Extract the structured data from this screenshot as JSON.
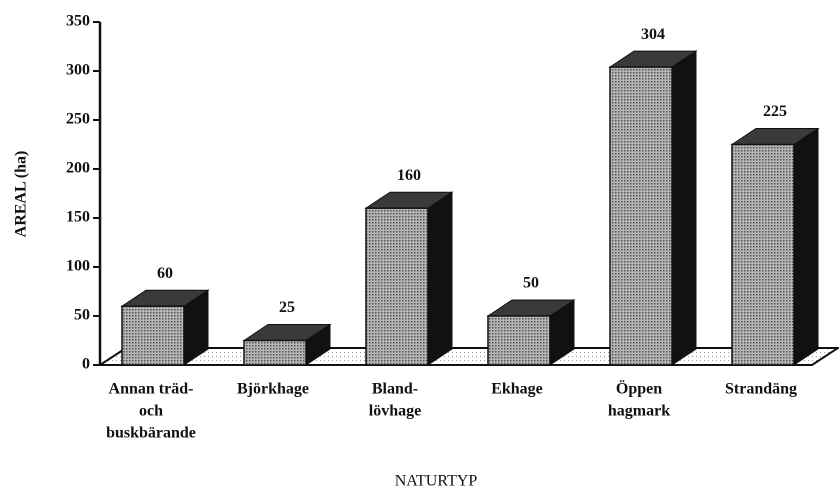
{
  "chart_data": {
    "type": "bar3d",
    "x_label": "NATURTYP",
    "y_label": "AREAL (ha)",
    "categories": [
      [
        "Annan träd-",
        "och",
        "buskbärande"
      ],
      [
        "Björkhage"
      ],
      [
        "Bland-",
        "lövhage"
      ],
      [
        "Ekhage"
      ],
      [
        "Öppen",
        "hagmark"
      ],
      [
        "Strandäng"
      ]
    ],
    "values": [
      60,
      25,
      160,
      50,
      304,
      225
    ],
    "color": "#8e8e8e",
    "ylim": [
      0,
      350
    ],
    "yticks": [
      0,
      50,
      100,
      150,
      200,
      250,
      300,
      350
    ]
  }
}
